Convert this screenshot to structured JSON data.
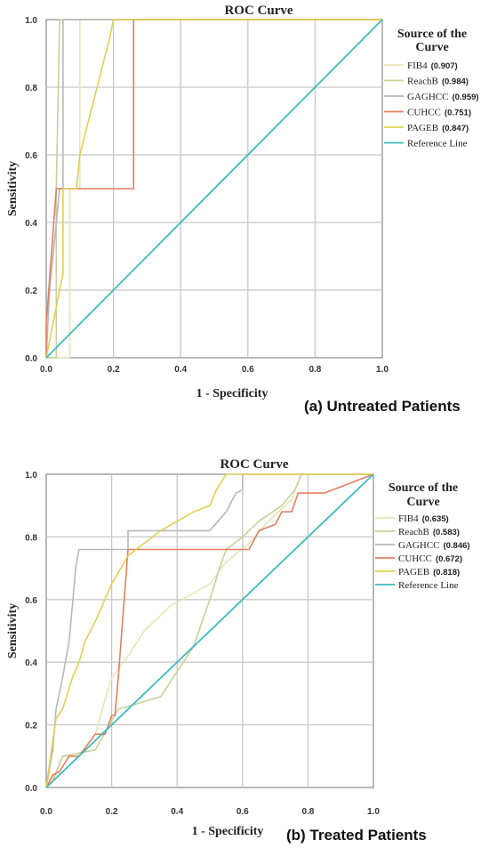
{
  "chart_data": [
    {
      "type": "line",
      "title": "ROC Curve",
      "xlabel": "1 - Specificity",
      "ylabel": "Sensitivity",
      "caption": "(a) Untreated Patients",
      "xlim": [
        0,
        1
      ],
      "ylim": [
        0,
        1
      ],
      "x_ticks": [
        "0.0",
        "0.2",
        "0.4",
        "0.6",
        "0.8",
        "1.0"
      ],
      "y_ticks": [
        "0.0",
        "0.2",
        "0.4",
        "0.6",
        "0.8",
        "1.0"
      ],
      "grid": true,
      "legend_title": "Source of the Curve",
      "legend_position": "right",
      "series": [
        {
          "name": "FIB4",
          "auc": "(0.907)",
          "color": "#e8e4b8",
          "x": [
            0,
            0.07,
            0.07,
            0.1,
            0.1,
            1.0
          ],
          "y": [
            0,
            0,
            0.5,
            0.5,
            1.0,
            1.0
          ]
        },
        {
          "name": "ReachB",
          "auc": "(0.984)",
          "color": "#c9d09a",
          "x": [
            0,
            0.03,
            0.03,
            0.04,
            1.0
          ],
          "y": [
            0,
            0,
            0.5,
            1.0,
            1.0
          ]
        },
        {
          "name": "GAGHCC",
          "auc": "(0.959)",
          "color": "#b8b8b8",
          "x": [
            0,
            0.01,
            0.04,
            0.04,
            0.05,
            0.05,
            1.0
          ],
          "y": [
            0,
            0.2,
            0.5,
            0.5,
            0.5,
            1.0,
            1.0
          ]
        },
        {
          "name": "CUHCC",
          "auc": "(0.751)",
          "color": "#e08060",
          "x": [
            0,
            0,
            0.03,
            0.26,
            0.26,
            1.0
          ],
          "y": [
            0,
            0.1,
            0.5,
            0.5,
            1.0,
            1.0
          ]
        },
        {
          "name": "PAGEB",
          "auc": "(0.847)",
          "color": "#e0d050",
          "x": [
            0,
            0.05,
            0.05,
            0.09,
            0.1,
            0.19,
            0.2,
            1.0
          ],
          "y": [
            0,
            0.25,
            0.5,
            0.5,
            0.6,
            0.95,
            1.0,
            1.0
          ]
        },
        {
          "name": "Reference Line",
          "auc": "",
          "color": "#3cbcbc",
          "x": [
            0,
            1
          ],
          "y": [
            0,
            1
          ]
        }
      ]
    },
    {
      "type": "line",
      "title": "ROC Curve",
      "xlabel": "1 - Specificity",
      "ylabel": "Sensitivity",
      "caption": "(b) Treated Patients",
      "xlim": [
        0,
        1
      ],
      "ylim": [
        0,
        1
      ],
      "x_ticks": [
        "0.0",
        "0.2",
        "0.4",
        "0.6",
        "0.8",
        "1.0"
      ],
      "y_ticks": [
        "0.0",
        "0.2",
        "0.4",
        "0.6",
        "0.8",
        "1.0"
      ],
      "grid": true,
      "legend_title": "Source of the Curve",
      "legend_position": "right",
      "series": [
        {
          "name": "FIB4",
          "auc": "(0.635)",
          "color": "#e8e4b8",
          "x": [
            0,
            0.03,
            0.05,
            0.1,
            0.15,
            0.18,
            0.2,
            0.25,
            0.3,
            0.33,
            0.38,
            0.45,
            0.5,
            0.55,
            0.62,
            0.68,
            0.75,
            0.78,
            1.0
          ],
          "y": [
            0,
            0.05,
            0.1,
            0.1,
            0.17,
            0.28,
            0.35,
            0.42,
            0.5,
            0.53,
            0.58,
            0.62,
            0.65,
            0.72,
            0.78,
            0.85,
            0.92,
            1.0,
            1.0
          ]
        },
        {
          "name": "ReachB",
          "auc": "(0.583)",
          "color": "#c9d09a",
          "x": [
            0,
            0.02,
            0.05,
            0.15,
            0.22,
            0.35,
            0.45,
            0.5,
            0.53,
            0.55,
            0.6,
            0.65,
            0.72,
            0.76,
            0.78,
            1.0
          ],
          "y": [
            0,
            0.02,
            0.1,
            0.12,
            0.25,
            0.29,
            0.45,
            0.6,
            0.7,
            0.76,
            0.8,
            0.85,
            0.9,
            0.95,
            1.0,
            1.0
          ]
        },
        {
          "name": "GAGHCC",
          "auc": "(0.846)",
          "color": "#b8b8b8",
          "x": [
            0,
            0.02,
            0.03,
            0.04,
            0.05,
            0.06,
            0.07,
            0.08,
            0.09,
            0.1,
            0.25,
            0.25,
            0.5,
            0.55,
            0.58,
            0.6,
            0.6,
            1.0
          ],
          "y": [
            0,
            0.12,
            0.25,
            0.3,
            0.35,
            0.41,
            0.47,
            0.58,
            0.7,
            0.76,
            0.76,
            0.82,
            0.82,
            0.88,
            0.94,
            0.95,
            1.0,
            1.0
          ]
        },
        {
          "name": "CUHCC",
          "auc": "(0.672)",
          "color": "#e08060",
          "x": [
            0,
            0.02,
            0.04,
            0.07,
            0.1,
            0.15,
            0.18,
            0.2,
            0.21,
            0.22,
            0.25,
            0.62,
            0.65,
            0.7,
            0.72,
            0.75,
            0.77,
            0.8,
            0.85,
            1.0
          ],
          "y": [
            0,
            0.04,
            0.05,
            0.1,
            0.1,
            0.17,
            0.17,
            0.23,
            0.23,
            0.35,
            0.76,
            0.76,
            0.82,
            0.84,
            0.88,
            0.88,
            0.94,
            0.94,
            0.94,
            1.0
          ]
        },
        {
          "name": "PAGEB",
          "auc": "(0.818)",
          "color": "#e0d050",
          "x": [
            0,
            0.03,
            0.05,
            0.08,
            0.1,
            0.12,
            0.15,
            0.2,
            0.25,
            0.35,
            0.45,
            0.5,
            0.52,
            0.55,
            1.0
          ],
          "y": [
            0,
            0.22,
            0.25,
            0.35,
            0.4,
            0.47,
            0.53,
            0.65,
            0.74,
            0.82,
            0.88,
            0.9,
            0.95,
            1.0,
            1.0
          ]
        },
        {
          "name": "Reference Line",
          "auc": "",
          "color": "#3cbcbc",
          "x": [
            0,
            1
          ],
          "y": [
            0,
            1
          ]
        }
      ]
    }
  ]
}
